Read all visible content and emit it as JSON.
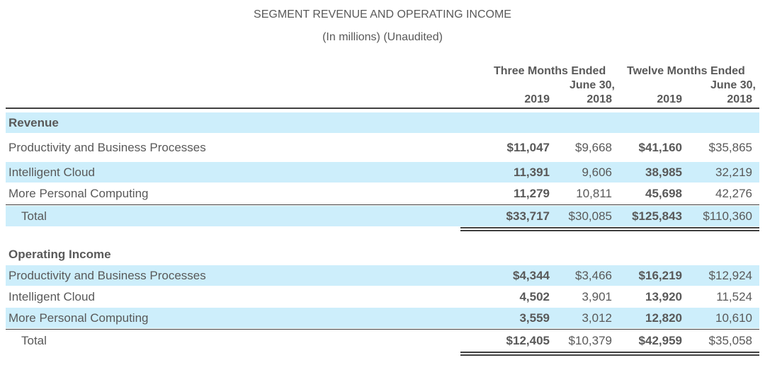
{
  "title": "SEGMENT REVENUE AND OPERATING INCOME",
  "subtitle": "(In millions) (Unaudited)",
  "header": {
    "three_months": "Three Months Ended",
    "twelve_months": "Twelve Months Ended",
    "june_30_a": "June 30,",
    "june_30_b": "June 30,",
    "years": [
      "2019",
      "2018",
      "2019",
      "2018"
    ]
  },
  "revenue": {
    "heading": "Revenue",
    "rows": [
      {
        "label": "Productivity and Business Processes",
        "values": [
          "$11,047",
          "$9,668",
          "$41,160",
          "$35,865"
        ]
      },
      {
        "label": "Intelligent Cloud",
        "values": [
          "11,391",
          "9,606",
          "38,985",
          "32,219"
        ]
      },
      {
        "label": "More Personal Computing",
        "values": [
          "11,279",
          "10,811",
          "45,698",
          "42,276"
        ]
      }
    ],
    "total": {
      "label": "Total",
      "values": [
        "$33,717",
        "$30,085",
        "$125,843",
        "$110,360"
      ]
    }
  },
  "operating_income": {
    "heading": "Operating Income",
    "rows": [
      {
        "label": "Productivity and Business Processes",
        "values": [
          "$4,344",
          "$3,466",
          "$16,219",
          "$12,924"
        ]
      },
      {
        "label": "Intelligent Cloud",
        "values": [
          "4,502",
          "3,901",
          "13,920",
          "11,524"
        ]
      },
      {
        "label": "More Personal Computing",
        "values": [
          "3,559",
          "3,012",
          "12,820",
          "10,610"
        ]
      }
    ],
    "total": {
      "label": "Total",
      "values": [
        "$12,405",
        "$10,379",
        "$42,959",
        "$35,058"
      ]
    }
  },
  "colors": {
    "band": "#cdeefb",
    "text": "#595959",
    "rule": "#404040"
  }
}
